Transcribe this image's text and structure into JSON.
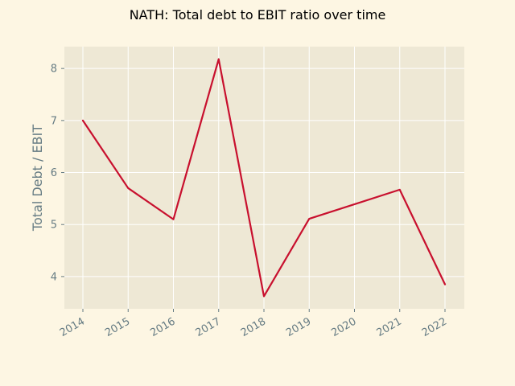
{
  "chart_data": {
    "type": "line",
    "title": "NATH: Total debt to EBIT ratio over time",
    "xlabel": "",
    "ylabel": "Total Debt / EBIT",
    "x": [
      "2014",
      "2015",
      "2016",
      "2017",
      "2018",
      "2019",
      "2020",
      "2021",
      "2022"
    ],
    "series": [
      {
        "name": "",
        "values": [
          7.0,
          5.7,
          5.1,
          8.18,
          3.62,
          5.11,
          null,
          5.67,
          3.85
        ],
        "color": "#c8102e"
      }
    ],
    "yticks": [
      4,
      5,
      6,
      7,
      8
    ],
    "ylim": [
      3.38,
      8.42
    ],
    "grid": true,
    "legend": "none"
  },
  "colors": {
    "background": "#fdf6e3",
    "plot_area": "#eee8d5",
    "grid": "#ffffff",
    "tick_text": "#657b83",
    "line": "#c8102e"
  }
}
